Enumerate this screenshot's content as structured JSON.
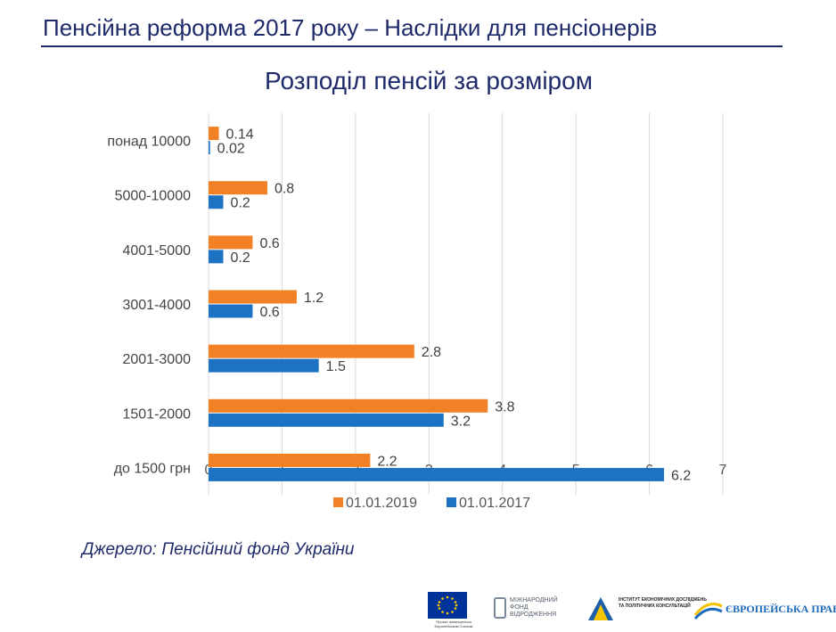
{
  "slide": {
    "title": "Пенсійна реформа 2017 року – Наслідки для пенсіонерів",
    "source": "Джерело: Пенсійний фонд України"
  },
  "chart_data": {
    "type": "bar",
    "orientation": "horizontal",
    "title": "Розподіл пенсій за розміром",
    "categories": [
      "понад 10000",
      "5000-10000",
      "4001-5000",
      "3001-4000",
      "2001-3000",
      "1501-2000",
      "до 1500 грн"
    ],
    "series": [
      {
        "name": "01.01.2019",
        "color": "#f28024",
        "values": [
          0.14,
          0.8,
          0.6,
          1.2,
          2.8,
          3.8,
          2.2
        ]
      },
      {
        "name": "01.01.2017",
        "color": "#1e72c4",
        "values": [
          0.02,
          0.2,
          0.2,
          0.6,
          1.5,
          3.2,
          6.2
        ]
      }
    ],
    "xlim": [
      0,
      7
    ],
    "xticks": [
      "0",
      "1",
      "2",
      "3",
      "4",
      "5",
      "6",
      "7"
    ],
    "grid": true,
    "legend": "bottom"
  },
  "logos": {
    "eu_caption": "Проект фінансується Європейським Союзом",
    "irf_text": "МІЖНАРОДНИЙ ФОНД ВІДРОДЖЕННЯ",
    "ier_text": "ІНСТИТУТ ЕКОНОМІЧНИХ ДОСЛІДЖЕНЬ ТА ПОЛІТИЧНИХ КОНСУЛЬТАЦІЙ",
    "ep_text": "ЄВРОПЕЙСЬКА ПРАВДА"
  }
}
